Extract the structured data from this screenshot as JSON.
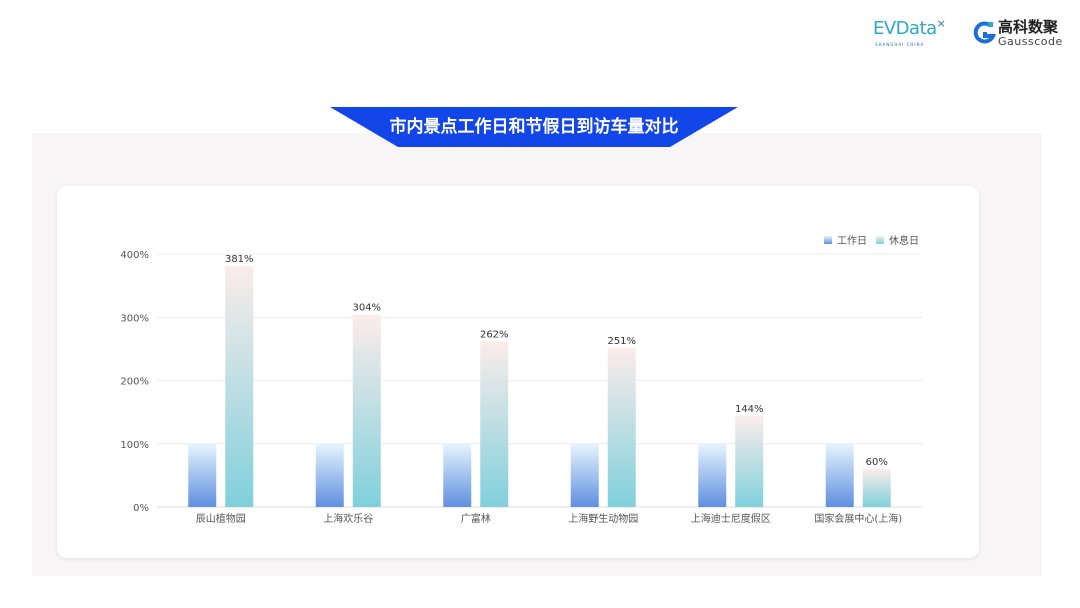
{
  "header": {
    "logo_evdata": "EVData",
    "logo_evdata_sub": "SHANGHAI CHINA",
    "logo_gauss_cn": "高科数聚",
    "logo_gauss_en": "Gausscode"
  },
  "colors": {
    "banner": "#1346e8",
    "workday_top": "#e6f5fd",
    "workday_bottom": "#5f8fe0",
    "rest_top": "#fbecea",
    "rest_bottom": "#7fd0dc",
    "gridline": "#ececec"
  },
  "chart_data": {
    "type": "bar",
    "title": "市内景点工作日和节假日到访车量对比",
    "categories": [
      "辰山植物园",
      "上海欢乐谷",
      "广富林",
      "上海野生动物园",
      "上海迪士尼度假区",
      "国家会展中心(上海)"
    ],
    "series": [
      {
        "name": "工作日",
        "values": [
          100,
          100,
          100,
          100,
          100,
          100
        ]
      },
      {
        "name": "休息日",
        "values": [
          381,
          304,
          262,
          251,
          144,
          60
        ]
      }
    ],
    "data_labels": [
      "381%",
      "304%",
      "262%",
      "251%",
      "144%",
      "60%"
    ],
    "yticks": [
      "0%",
      "100%",
      "200%",
      "300%",
      "400%"
    ],
    "ylim": [
      0,
      400
    ],
    "grid": true,
    "legend": "top-right"
  }
}
